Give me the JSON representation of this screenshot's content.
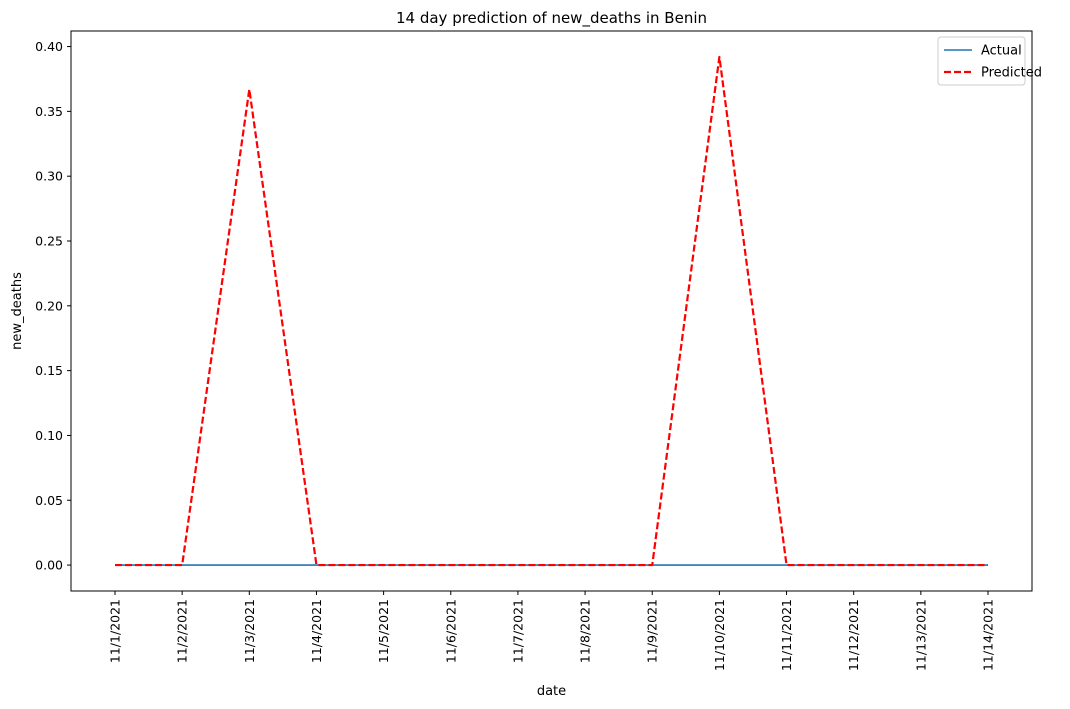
{
  "chart_data": {
    "type": "line",
    "title": "14 day prediction of new_deaths in Benin",
    "xlabel": "date",
    "ylabel": "new_deaths",
    "categories": [
      "11/1/2021",
      "11/2/2021",
      "11/3/2021",
      "11/4/2021",
      "11/5/2021",
      "11/6/2021",
      "11/7/2021",
      "11/8/2021",
      "11/9/2021",
      "11/10/2021",
      "11/11/2021",
      "11/12/2021",
      "11/13/2021",
      "11/14/2021"
    ],
    "series": [
      {
        "name": "Actual",
        "color": "#1f77b4",
        "style": "solid",
        "values": [
          0,
          0,
          0,
          0,
          0,
          0,
          0,
          0,
          0,
          0,
          0,
          0,
          0,
          0
        ]
      },
      {
        "name": "Predicted",
        "color": "#ff0000",
        "style": "dashed",
        "values": [
          0,
          0,
          0.367,
          0,
          0,
          0,
          0,
          0,
          0,
          0.392,
          0,
          0,
          0,
          0
        ]
      }
    ],
    "ylim": [
      -0.02,
      0.412
    ],
    "yticks": [
      0.0,
      0.05,
      0.1,
      0.15,
      0.2,
      0.25,
      0.3,
      0.35,
      0.4
    ],
    "ytick_labels": [
      "0.00",
      "0.05",
      "0.10",
      "0.15",
      "0.20",
      "0.25",
      "0.30",
      "0.35",
      "0.40"
    ],
    "grid": false,
    "legend_position": "top-right"
  }
}
